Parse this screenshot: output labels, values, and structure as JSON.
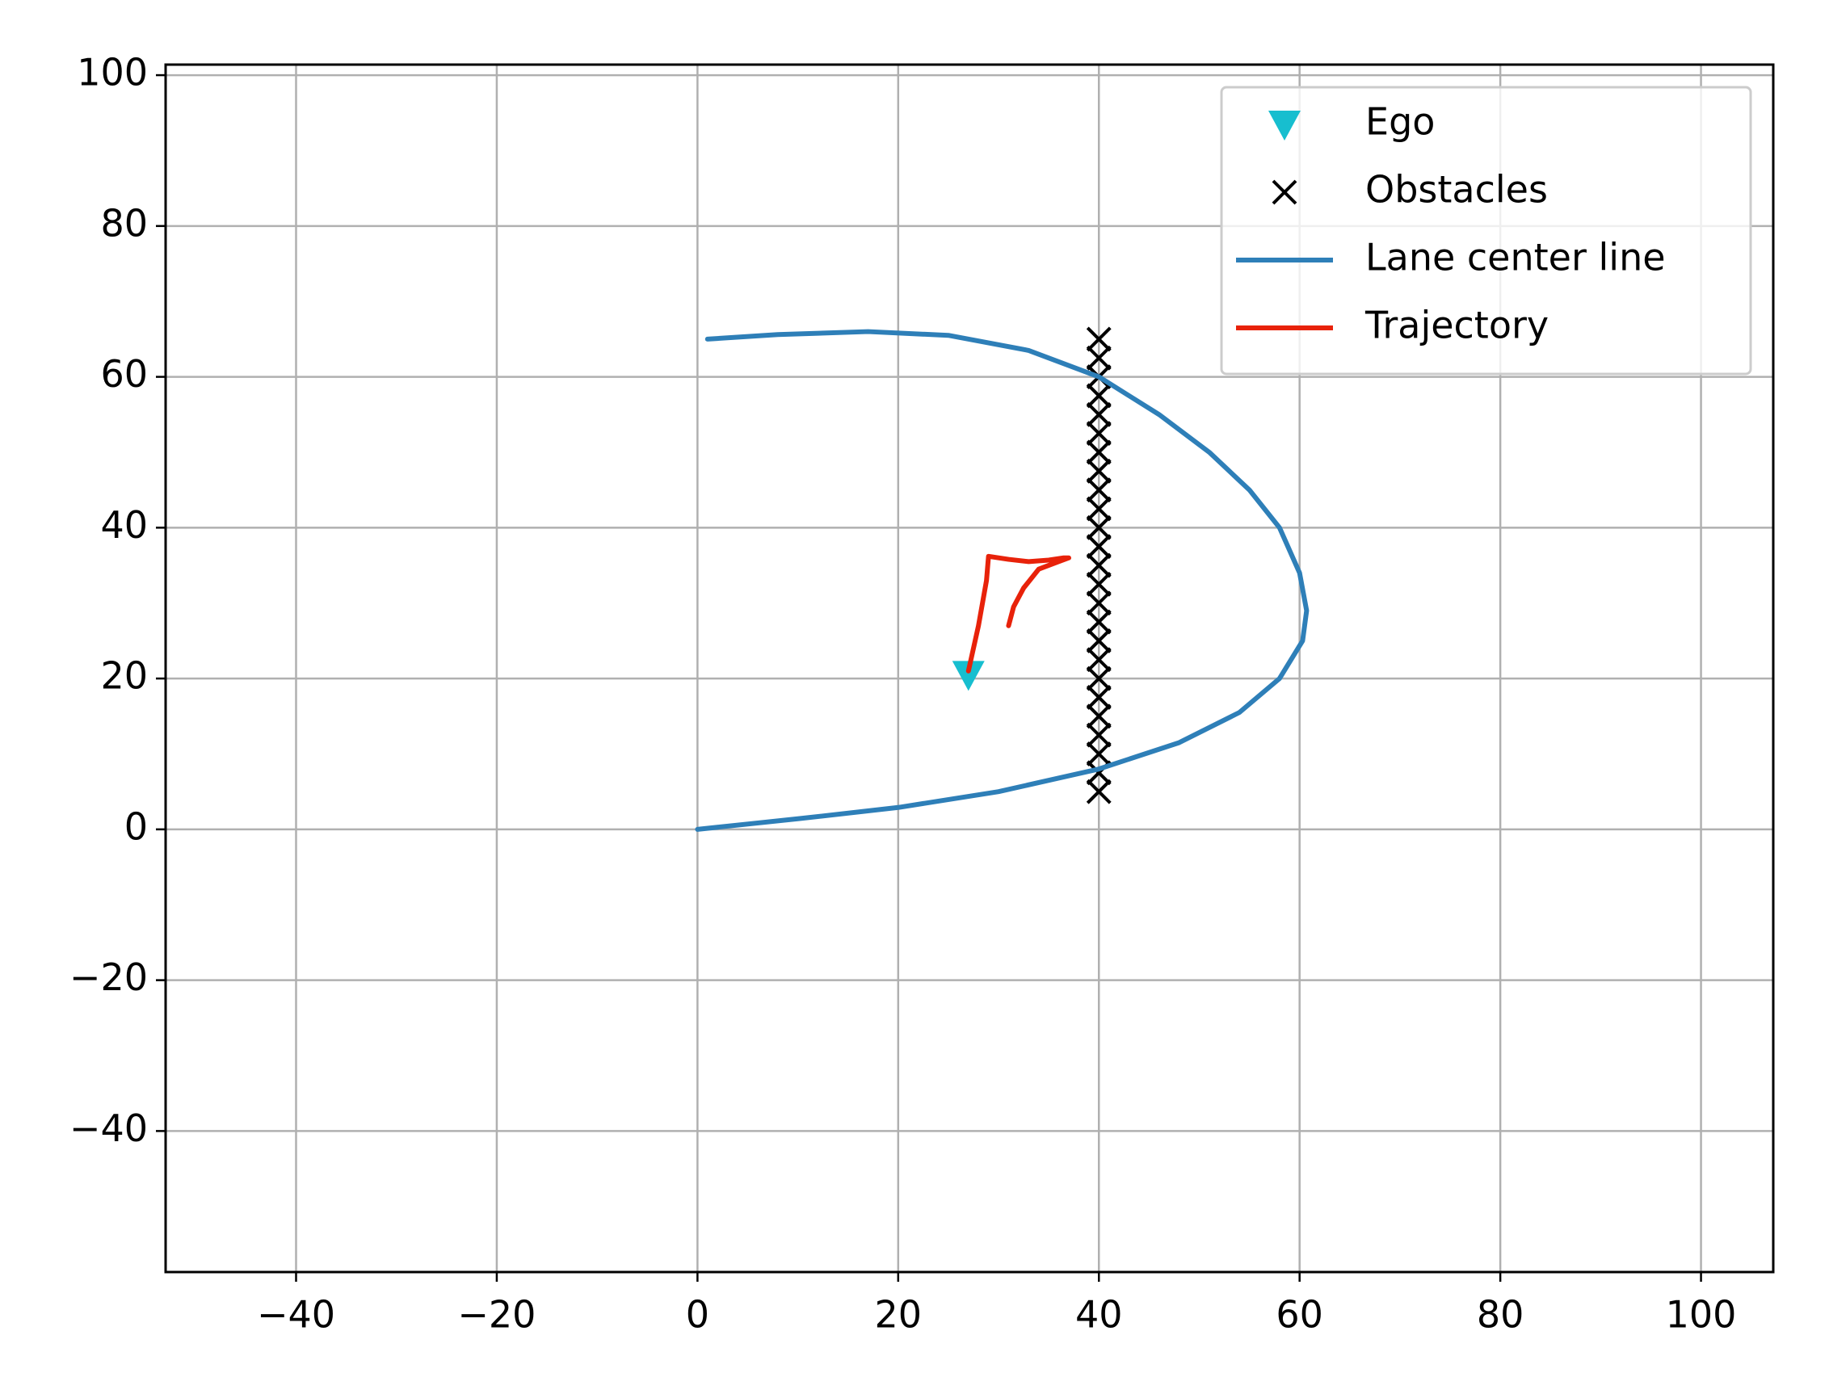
{
  "chart_data": {
    "type": "line",
    "xlim": [
      -53,
      107.2
    ],
    "ylim": [
      -58.7,
      101.4
    ],
    "xticks": [
      {
        "value": -40,
        "label": "−40"
      },
      {
        "value": -20,
        "label": "−20"
      },
      0,
      20,
      40,
      60,
      80,
      100
    ],
    "yticks": [
      {
        "value": -40,
        "label": "−40"
      },
      {
        "value": -20,
        "label": "−20"
      },
      0,
      20,
      40,
      60,
      80,
      100
    ],
    "grid": true,
    "legend": "upper right",
    "series": [
      {
        "name": "Ego",
        "type": "scatter",
        "marker": "triangle-down",
        "color": "#17becf",
        "x": [
          27
        ],
        "y": [
          20.5
        ]
      },
      {
        "name": "Obstacles",
        "type": "scatter",
        "marker": "x",
        "color": "#000000",
        "x": [
          40,
          40,
          40,
          40,
          40,
          40,
          40,
          40,
          40,
          40,
          40,
          40,
          40,
          40,
          40,
          40,
          40,
          40,
          40,
          40,
          40,
          40,
          40,
          40,
          40
        ],
        "y": [
          5,
          7.5,
          10,
          12.5,
          15,
          17.5,
          20,
          22.5,
          25,
          27.5,
          30,
          32.5,
          35,
          37.5,
          40,
          42.5,
          45,
          47.5,
          50,
          52.5,
          55,
          57.5,
          60,
          62.5,
          65
        ]
      },
      {
        "name": "Lane center line",
        "type": "line",
        "color": "#2e7fb8",
        "x": [
          0,
          10,
          20,
          30,
          40,
          48,
          54,
          58,
          60.3,
          60.7,
          60,
          58,
          55,
          51,
          46,
          40,
          33,
          25,
          17,
          8,
          1
        ],
        "y": [
          0,
          1.4,
          2.9,
          5,
          8,
          11.5,
          15.5,
          20,
          25,
          29,
          34,
          40,
          45,
          50,
          55,
          60,
          63.5,
          65.5,
          66,
          65.6,
          65
        ]
      },
      {
        "name": "Trajectory",
        "type": "line",
        "color": "#e8220a",
        "x": [
          27,
          28,
          28.8,
          29,
          31,
          33,
          35,
          36.5,
          37,
          36,
          34,
          32.5,
          31.5,
          31
        ],
        "y": [
          21,
          27,
          33,
          36.2,
          35.8,
          35.5,
          35.7,
          36,
          36,
          35.5,
          34.5,
          32,
          29.5,
          27
        ]
      }
    ]
  }
}
